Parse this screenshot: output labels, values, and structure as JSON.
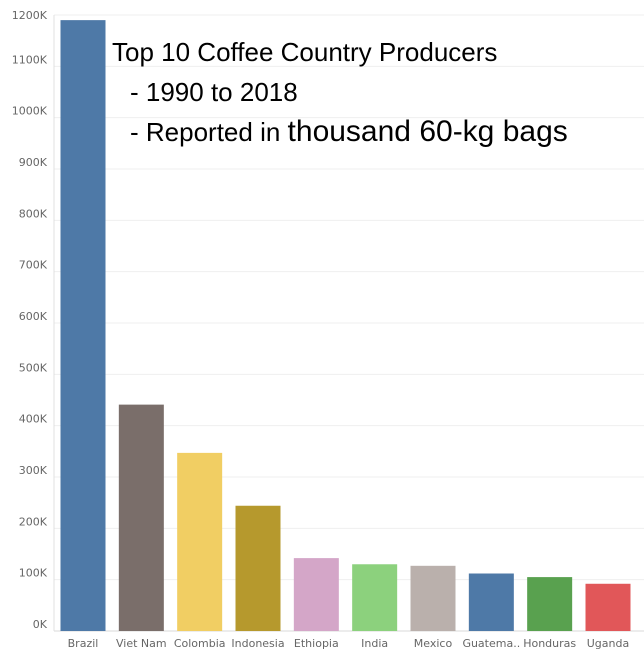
{
  "chart_data": {
    "type": "bar",
    "title_lines": [
      "Top 10 Coffee Country Producers",
      "- 1990 to 2018",
      "- Reported in",
      "thousand 60-kg bags"
    ],
    "categories": [
      "Brazil",
      "Viet Nam",
      "Colombia",
      "Indonesia",
      "Ethiopia",
      "India",
      "Mexico",
      "Guatema..",
      "Honduras",
      "Uganda"
    ],
    "values": [
      1190000,
      441000,
      347000,
      244000,
      142000,
      130000,
      127000,
      112000,
      105000,
      92000
    ],
    "colors": [
      "#4e79a7",
      "#7a6e6a",
      "#f1ce63",
      "#b6992d",
      "#d4a6c8",
      "#8cd17d",
      "#bab0ac",
      "#4e79a7",
      "#59a14f",
      "#e15759"
    ],
    "ylim": [
      0,
      1200000
    ],
    "yticks": [
      0,
      100000,
      200000,
      300000,
      400000,
      500000,
      600000,
      700000,
      800000,
      900000,
      1000000,
      1100000,
      1200000
    ],
    "ytick_labels": [
      "0K",
      "100K",
      "200K",
      "300K",
      "400K",
      "500K",
      "600K",
      "700K",
      "800K",
      "900K",
      "1000K",
      "1100K",
      "1200K"
    ],
    "grid": true
  }
}
